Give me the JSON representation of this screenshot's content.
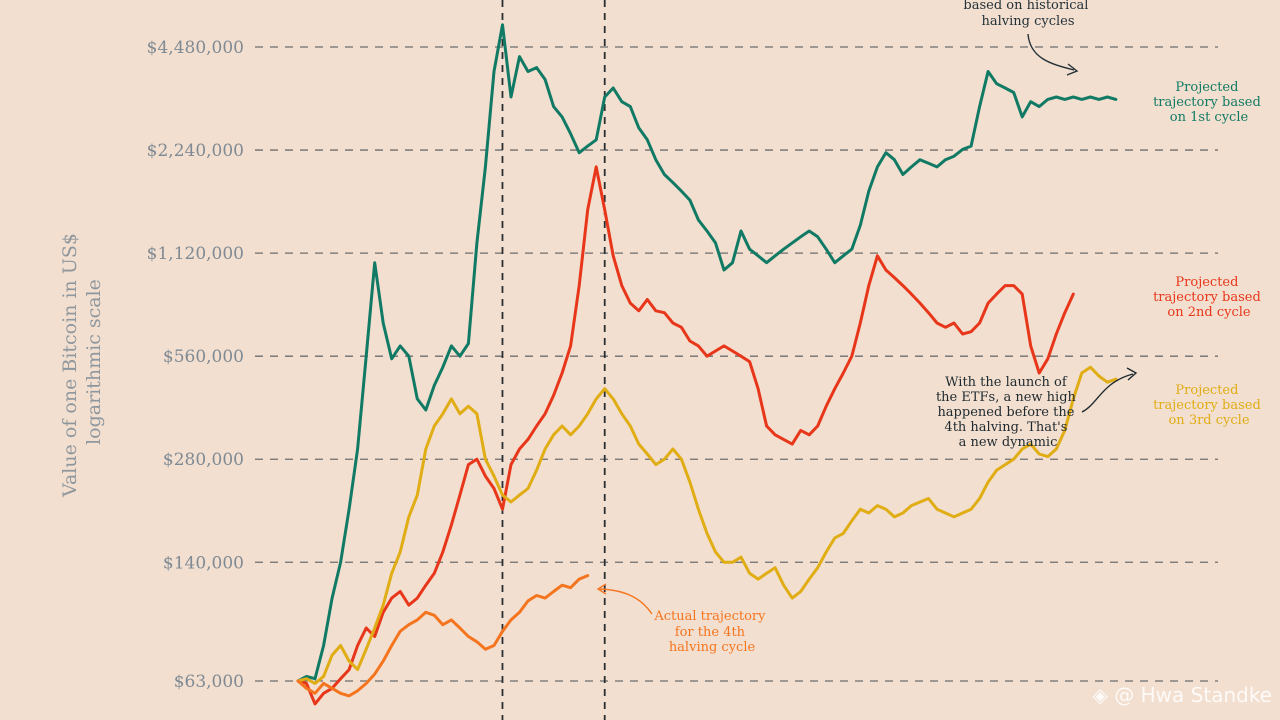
{
  "chart_data": {
    "type": "line",
    "ylabel": "Value of one Bitcoin in US$ logarithmic scale",
    "ylabel_lines": [
      "Value of one Bitcoin in US$",
      "logarithmic scale"
    ],
    "y_scale": "log",
    "grid": "horizontal dashed",
    "yticks": [
      63000,
      140000,
      280000,
      560000,
      1120000,
      2240000,
      4480000
    ],
    "ytick_labels": [
      "$63,000",
      "$140,000",
      "$280,000",
      "$560,000",
      "$1,120,000",
      "$2,240,000",
      "$4,480,000"
    ],
    "ylim": [
      56000,
      5600000
    ],
    "xlim": [
      0,
      100
    ],
    "vertical_markers": [
      24,
      36
    ],
    "series": [
      {
        "name": "Projected trajectory based on 1st cycle",
        "color": "#117a65",
        "x": [
          0,
          1,
          2,
          3,
          4,
          5,
          6,
          7,
          8,
          9,
          10,
          11,
          12,
          13,
          14,
          15,
          16,
          17,
          18,
          19,
          20,
          21,
          22,
          23,
          24,
          25,
          26,
          27,
          28,
          29,
          30,
          31,
          32,
          33,
          34,
          35,
          36,
          37,
          38,
          39,
          40,
          41,
          42,
          43,
          44,
          45,
          46,
          47,
          48,
          49,
          50,
          51,
          52,
          53,
          54,
          55,
          56,
          57,
          58,
          59,
          60,
          61,
          62,
          63,
          64,
          65,
          66,
          67,
          68,
          69,
          70,
          71,
          72,
          73,
          74,
          75,
          76,
          77,
          78,
          79,
          80,
          81,
          82,
          83,
          84,
          85,
          86,
          87,
          88,
          89,
          90,
          91,
          92,
          93,
          94,
          95,
          96
        ],
        "values": [
          63000,
          65000,
          64000,
          80000,
          110000,
          140000,
          200000,
          300000,
          560000,
          1050000,
          700000,
          550000,
          600000,
          560000,
          420000,
          390000,
          460000,
          520000,
          600000,
          560000,
          610000,
          1200000,
          2000000,
          3800000,
          5200000,
          3200000,
          4200000,
          3800000,
          3900000,
          3600000,
          3000000,
          2800000,
          2500000,
          2200000,
          2300000,
          2400000,
          3200000,
          3400000,
          3100000,
          3000000,
          2600000,
          2400000,
          2100000,
          1900000,
          1800000,
          1700000,
          1600000,
          1400000,
          1300000,
          1200000,
          1000000,
          1050000,
          1300000,
          1150000,
          1100000,
          1050000,
          1100000,
          1150000,
          1200000,
          1250000,
          1300000,
          1250000,
          1150000,
          1050000,
          1100000,
          1150000,
          1350000,
          1700000,
          2000000,
          2200000,
          2100000,
          1900000,
          2000000,
          2100000,
          2050000,
          2000000,
          2100000,
          2150000,
          2250000,
          2300000,
          3000000,
          3800000,
          3500000,
          3400000,
          3300000,
          2800000,
          3100000,
          3000000,
          3150000,
          3200000,
          3150000,
          3200000,
          3150000,
          3200000,
          3150000,
          3200000,
          3150000
        ]
      },
      {
        "name": "Projected trajectory based on 2nd cycle",
        "color": "#e8361a",
        "x": [
          0,
          1,
          2,
          3,
          4,
          5,
          6,
          7,
          8,
          9,
          10,
          11,
          12,
          13,
          14,
          15,
          16,
          17,
          18,
          19,
          20,
          21,
          22,
          23,
          24,
          25,
          26,
          27,
          28,
          29,
          30,
          31,
          32,
          33,
          34,
          35,
          36,
          37,
          38,
          39,
          40,
          41,
          42,
          43,
          44,
          45,
          46,
          47,
          48,
          49,
          50,
          51,
          52,
          53,
          54,
          55,
          56,
          57,
          58,
          59,
          60,
          61,
          62,
          63,
          64,
          65,
          66,
          67,
          68,
          69,
          70,
          71,
          72,
          73,
          74,
          75,
          76,
          77,
          78,
          79,
          80,
          81,
          82,
          83,
          84,
          85,
          86,
          87,
          88,
          89,
          90,
          91
        ],
        "values": [
          63000,
          62000,
          54000,
          58000,
          60000,
          64000,
          68000,
          80000,
          90000,
          85000,
          100000,
          110000,
          115000,
          105000,
          110000,
          120000,
          130000,
          150000,
          180000,
          220000,
          270000,
          280000,
          250000,
          230000,
          200000,
          270000,
          300000,
          320000,
          350000,
          380000,
          430000,
          500000,
          600000,
          900000,
          1500000,
          2000000,
          1500000,
          1100000,
          900000,
          800000,
          760000,
          820000,
          760000,
          750000,
          700000,
          680000,
          620000,
          600000,
          560000,
          580000,
          600000,
          580000,
          560000,
          540000,
          450000,
          350000,
          330000,
          320000,
          310000,
          340000,
          330000,
          350000,
          400000,
          450000,
          500000,
          560000,
          700000,
          900000,
          1100000,
          1000000,
          950000,
          900000,
          850000,
          800000,
          750000,
          700000,
          680000,
          700000,
          650000,
          660000,
          700000,
          800000,
          850000,
          900000,
          900000,
          850000,
          600000,
          500000,
          550000,
          650000,
          750000,
          850000
        ]
      },
      {
        "name": "Projected trajectory based on 3rd cycle",
        "color": "#e0ad14",
        "x": [
          0,
          1,
          2,
          3,
          4,
          5,
          6,
          7,
          8,
          9,
          10,
          11,
          12,
          13,
          14,
          15,
          16,
          17,
          18,
          19,
          20,
          21,
          22,
          23,
          24,
          25,
          26,
          27,
          28,
          29,
          30,
          31,
          32,
          33,
          34,
          35,
          36,
          37,
          38,
          39,
          40,
          41,
          42,
          43,
          44,
          45,
          46,
          47,
          48,
          49,
          50,
          51,
          52,
          53,
          54,
          55,
          56,
          57,
          58,
          59,
          60,
          61,
          62,
          63,
          64,
          65,
          66,
          67,
          68,
          69,
          70,
          71,
          72,
          73,
          74,
          75,
          76,
          77,
          78,
          79,
          80,
          81,
          82,
          83,
          84,
          85,
          86,
          87,
          88,
          89,
          90,
          91,
          92,
          93,
          94,
          95,
          96
        ],
        "values": [
          63000,
          64000,
          62000,
          65000,
          75000,
          80000,
          72000,
          68000,
          78000,
          90000,
          105000,
          130000,
          150000,
          190000,
          220000,
          300000,
          350000,
          380000,
          420000,
          380000,
          400000,
          380000,
          280000,
          250000,
          220000,
          210000,
          220000,
          230000,
          260000,
          300000,
          330000,
          350000,
          330000,
          350000,
          380000,
          420000,
          450000,
          420000,
          380000,
          350000,
          310000,
          290000,
          270000,
          280000,
          300000,
          280000,
          240000,
          200000,
          170000,
          150000,
          140000,
          140000,
          145000,
          130000,
          125000,
          130000,
          135000,
          120000,
          110000,
          115000,
          125000,
          135000,
          150000,
          165000,
          170000,
          185000,
          200000,
          195000,
          205000,
          200000,
          190000,
          195000,
          205000,
          210000,
          215000,
          200000,
          195000,
          190000,
          195000,
          200000,
          215000,
          240000,
          260000,
          270000,
          280000,
          300000,
          310000,
          290000,
          285000,
          300000,
          340000,
          420000,
          500000,
          520000,
          490000,
          470000,
          480000
        ]
      },
      {
        "name": "Actual trajectory for the 4th halving cycle",
        "color": "#f5751f",
        "x": [
          0,
          1,
          2,
          3,
          4,
          5,
          6,
          7,
          8,
          9,
          10,
          11,
          12,
          13,
          14,
          15,
          16,
          17,
          18,
          19,
          20,
          21,
          22,
          23,
          24,
          25,
          26,
          27,
          28,
          29,
          30,
          31,
          32,
          33,
          34
        ],
        "values": [
          63000,
          60000,
          58000,
          62000,
          60000,
          58000,
          57000,
          59000,
          62000,
          66000,
          72000,
          80000,
          88000,
          92000,
          95000,
          100000,
          98000,
          92000,
          95000,
          90000,
          85000,
          82000,
          78000,
          80000,
          88000,
          95000,
          100000,
          108000,
          112000,
          110000,
          115000,
          120000,
          118000,
          125000,
          128000
        ]
      }
    ]
  },
  "annotations": {
    "top_note": [
      "based on historical",
      "halving cycles"
    ],
    "first_cycle": [
      "Projected",
      "trajectory based",
      "on 1st cycle"
    ],
    "second_cycle": [
      "Projected",
      "trajectory based",
      "on 2nd cycle"
    ],
    "third_cycle": [
      "Projected",
      "trajectory based",
      "on 3rd cycle"
    ],
    "fourth_cycle": [
      "Actual trajectory",
      "for the 4th",
      "halving cycle"
    ],
    "etf_note": [
      "With the launch of",
      "the ETFs, a new high",
      "happened before the",
      "4th halving. That's",
      "a new dynamic"
    ]
  },
  "watermark": "◈ @ Hwa Standke"
}
